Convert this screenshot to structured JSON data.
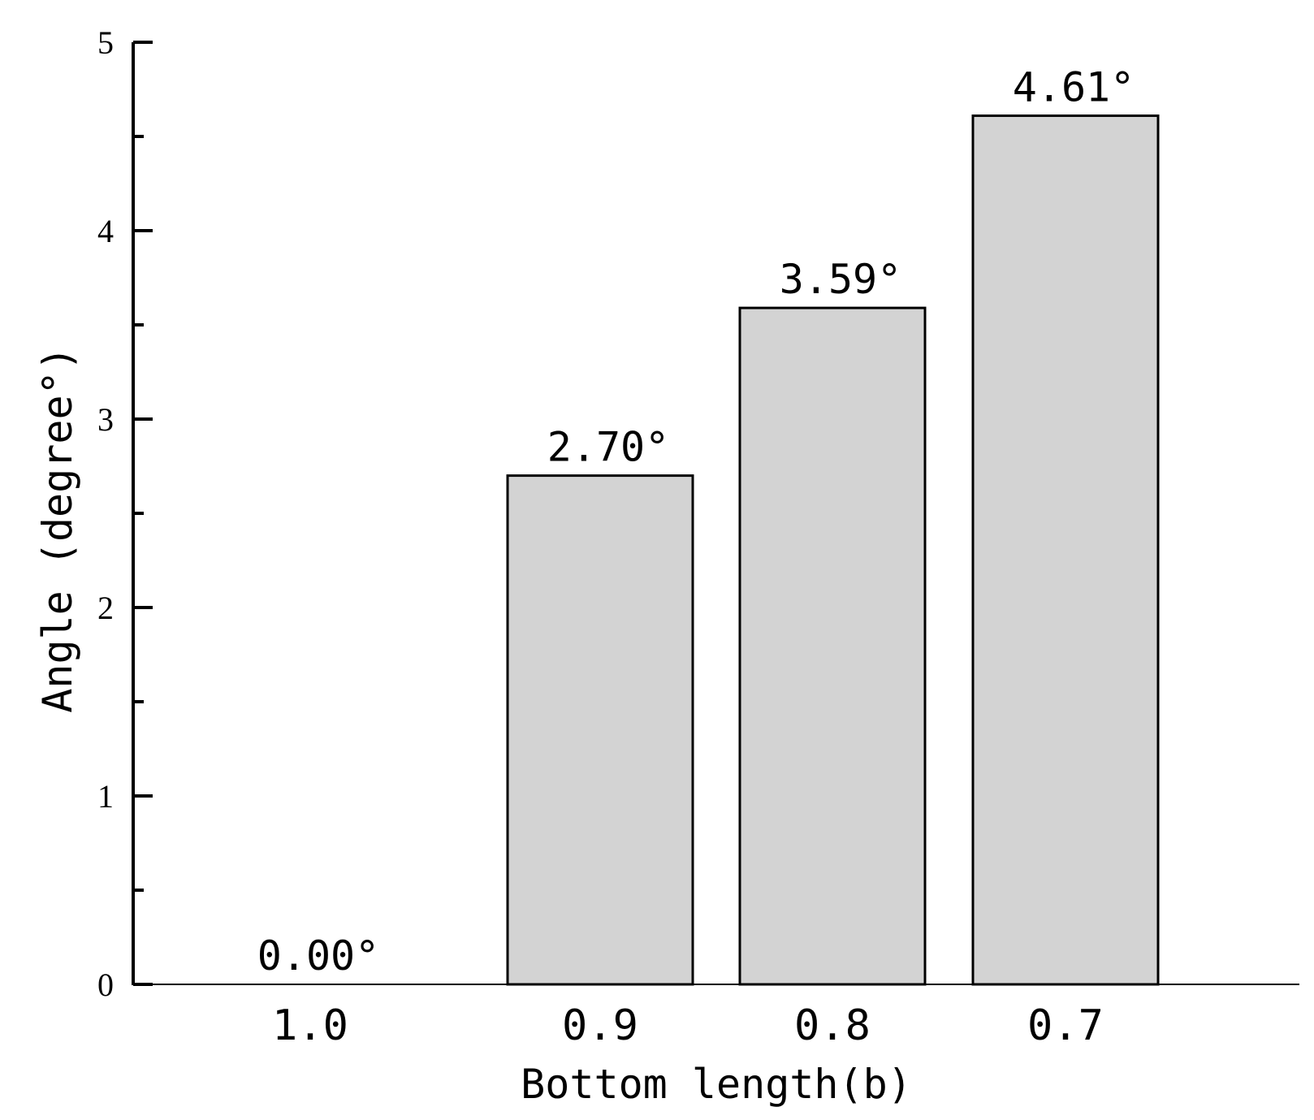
{
  "chart_data": {
    "type": "bar",
    "categories": [
      "1.0",
      "0.9",
      "0.8",
      "0.7"
    ],
    "values": [
      0.0,
      2.7,
      3.59,
      4.61
    ],
    "data_labels": [
      "0.00°",
      "2.70°",
      "3.59°",
      "4.61°"
    ],
    "xlabel": "Bottom length(b)",
    "ylabel": "Angle (degree°)",
    "ylim": [
      0,
      5
    ],
    "yticks": [
      "0",
      "1",
      "2",
      "3",
      "4",
      "5"
    ],
    "grid": false,
    "bar_color": "#d3d3d3",
    "edge_color": "#000000"
  }
}
